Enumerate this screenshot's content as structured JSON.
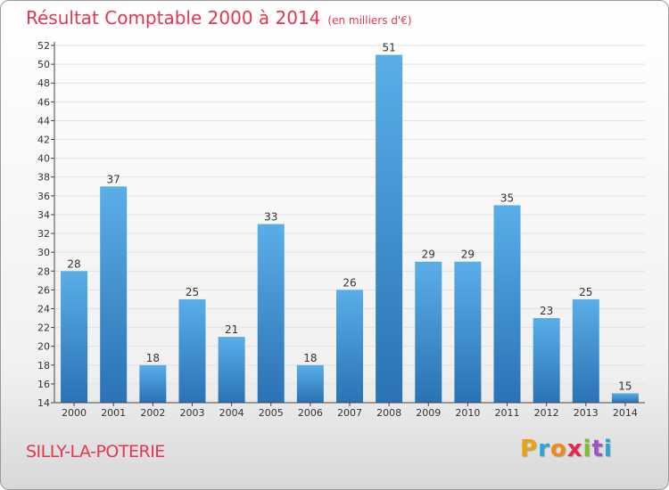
{
  "header": {
    "title": "Résultat Comptable 2000 à 2014",
    "subtitle": "(en milliers d'€)"
  },
  "footer": {
    "commune": "SILLY-LA-POTERIE",
    "brand": [
      "P",
      "r",
      "o",
      "x",
      "i",
      "t",
      "i"
    ],
    "brand_colors": [
      "#e8a317",
      "#2aa5d8",
      "#f08a1c",
      "#e22b4b",
      "#7bbf2a",
      "#9a55c2",
      "#2aa5d8"
    ]
  },
  "colors": {
    "bar_light": "#5aaee8",
    "bar_dark": "#2a72b4",
    "axis": "#444444",
    "grid": "#e2e2e2",
    "title": "#e4364f"
  },
  "chart_data": {
    "type": "bar",
    "title": "Résultat Comptable 2000 à 2014",
    "subtitle": "(en milliers d'€)",
    "categories": [
      "2000",
      "2001",
      "2002",
      "2003",
      "2004",
      "2005",
      "2006",
      "2007",
      "2008",
      "2009",
      "2010",
      "2011",
      "2012",
      "2013",
      "2014"
    ],
    "values": [
      28,
      37,
      18,
      25,
      21,
      33,
      18,
      26,
      51,
      29,
      29,
      35,
      23,
      25,
      15
    ],
    "data_labels": [
      "28",
      "37",
      "18",
      "25",
      "21",
      "33",
      "18",
      "26",
      "51",
      "29",
      "29",
      "35",
      "23",
      "25",
      "15"
    ],
    "ylim": [
      14,
      52
    ],
    "yticks": [
      14,
      16,
      18,
      20,
      22,
      24,
      26,
      28,
      30,
      32,
      34,
      36,
      38,
      40,
      42,
      44,
      46,
      48,
      50,
      52
    ],
    "grid": true,
    "legend": "none"
  }
}
